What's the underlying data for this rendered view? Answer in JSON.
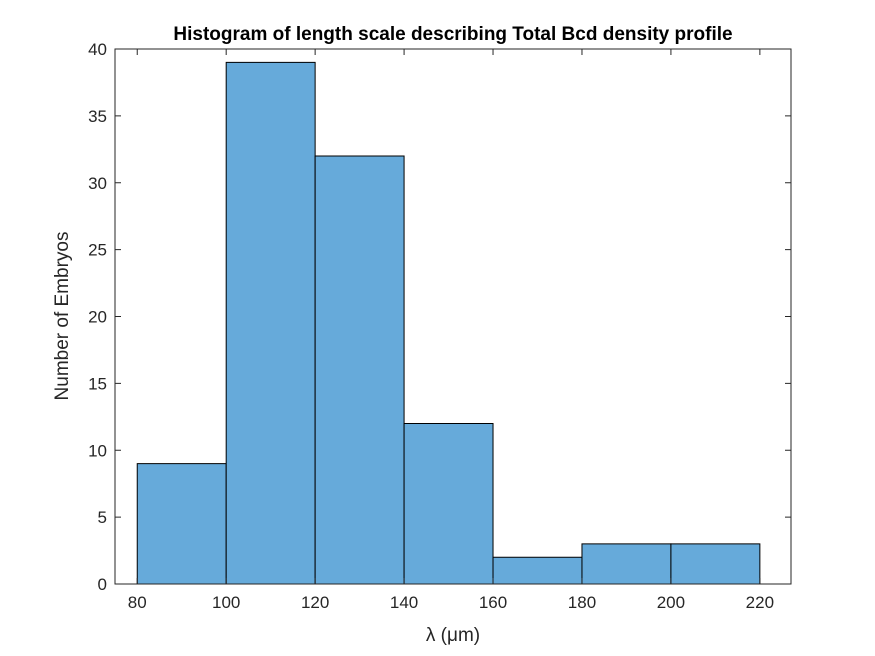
{
  "chart_data": {
    "type": "bar",
    "title": "Histogram of length scale describing Total Bcd density profile",
    "xlabel": "λ (μm)",
    "ylabel": "Number of Embryos",
    "bin_edges": [
      80,
      100,
      120,
      140,
      160,
      180,
      200,
      220
    ],
    "values": [
      9,
      39,
      32,
      12,
      2,
      3,
      3
    ],
    "xlim": [
      75,
      227
    ],
    "ylim": [
      0,
      40
    ],
    "xticks": [
      80,
      100,
      120,
      140,
      160,
      180,
      200,
      220
    ],
    "yticks": [
      0,
      5,
      10,
      15,
      20,
      25,
      30,
      35,
      40
    ],
    "bar_color": "#66AADA",
    "edge_color": "#000000",
    "grid": false,
    "legend": "none"
  }
}
